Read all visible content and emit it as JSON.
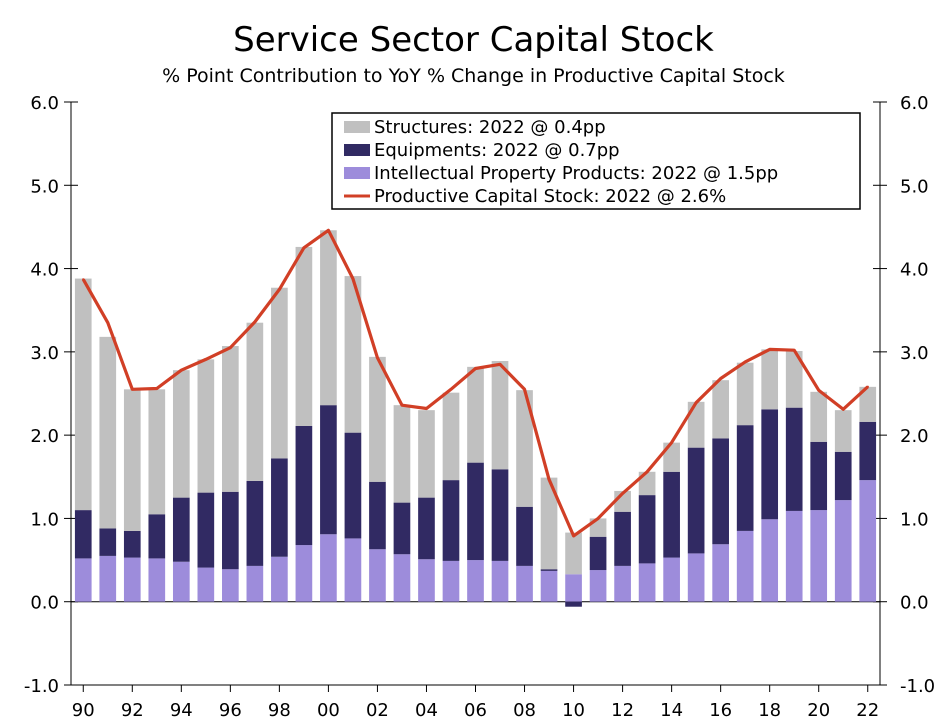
{
  "chart_data": {
    "type": "bar",
    "title": "Service Sector Capital Stock",
    "subtitle": "% Point Contribution to YoY % Change in Productive Capital Stock",
    "ylim": [
      -1.0,
      6.0
    ],
    "yticks": [
      "-1.0",
      "0.0",
      "1.0",
      "2.0",
      "3.0",
      "4.0",
      "5.0",
      "6.0"
    ],
    "years": [
      1990,
      1991,
      1992,
      1993,
      1994,
      1995,
      1996,
      1997,
      1998,
      1999,
      2000,
      2001,
      2002,
      2003,
      2004,
      2005,
      2006,
      2007,
      2008,
      2009,
      2010,
      2011,
      2012,
      2013,
      2014,
      2015,
      2016,
      2017,
      2018,
      2019,
      2020,
      2021,
      2022
    ],
    "xtick_labels": [
      "90",
      "92",
      "94",
      "96",
      "98",
      "00",
      "02",
      "04",
      "06",
      "08",
      "10",
      "12",
      "14",
      "16",
      "18",
      "20",
      "22"
    ],
    "legend_position": "top-right",
    "series": [
      {
        "name": "Structures: 2022 @ 0.4pp",
        "kind": "bar",
        "color": "#c0c0c0",
        "values": [
          2.78,
          2.3,
          1.7,
          1.5,
          1.53,
          1.6,
          1.75,
          1.9,
          2.05,
          2.15,
          2.1,
          1.88,
          1.5,
          1.17,
          1.05,
          1.05,
          1.15,
          1.3,
          1.4,
          1.1,
          0.5,
          0.22,
          0.25,
          0.28,
          0.35,
          0.55,
          0.7,
          0.75,
          0.72,
          0.68,
          0.6,
          0.5,
          0.42
        ]
      },
      {
        "name": "Equipments: 2022 @ 0.7pp",
        "kind": "bar",
        "color": "#312a63",
        "values": [
          0.58,
          0.33,
          0.32,
          0.53,
          0.77,
          0.9,
          0.93,
          1.02,
          1.18,
          1.43,
          1.55,
          1.27,
          0.81,
          0.62,
          0.74,
          0.97,
          1.17,
          1.1,
          0.71,
          0.02,
          -0.06,
          0.4,
          0.65,
          0.82,
          1.03,
          1.27,
          1.27,
          1.27,
          1.32,
          1.24,
          0.82,
          0.58,
          0.7
        ]
      },
      {
        "name": "Intellectual Property Products: 2022 @ 1.5pp",
        "kind": "bar",
        "color": "#9d8cdb",
        "values": [
          0.52,
          0.55,
          0.53,
          0.52,
          0.48,
          0.41,
          0.39,
          0.43,
          0.54,
          0.68,
          0.81,
          0.76,
          0.63,
          0.57,
          0.51,
          0.49,
          0.5,
          0.49,
          0.43,
          0.37,
          0.33,
          0.38,
          0.43,
          0.46,
          0.53,
          0.58,
          0.69,
          0.85,
          0.99,
          1.09,
          1.1,
          1.22,
          1.46
        ]
      },
      {
        "name": "Productive Capital Stock: 2022 @ 2.6%",
        "kind": "line",
        "color": "#d13f26",
        "values": [
          3.87,
          3.35,
          2.55,
          2.56,
          2.78,
          2.91,
          3.05,
          3.36,
          3.75,
          4.25,
          4.46,
          3.88,
          2.93,
          2.36,
          2.32,
          2.55,
          2.8,
          2.85,
          2.55,
          1.47,
          0.79,
          1.0,
          1.3,
          1.56,
          1.91,
          2.39,
          2.68,
          2.88,
          3.03,
          3.02,
          2.54,
          2.31,
          2.58
        ]
      }
    ]
  },
  "axis": {
    "left_color": "#000000",
    "right_color": "#000000"
  }
}
